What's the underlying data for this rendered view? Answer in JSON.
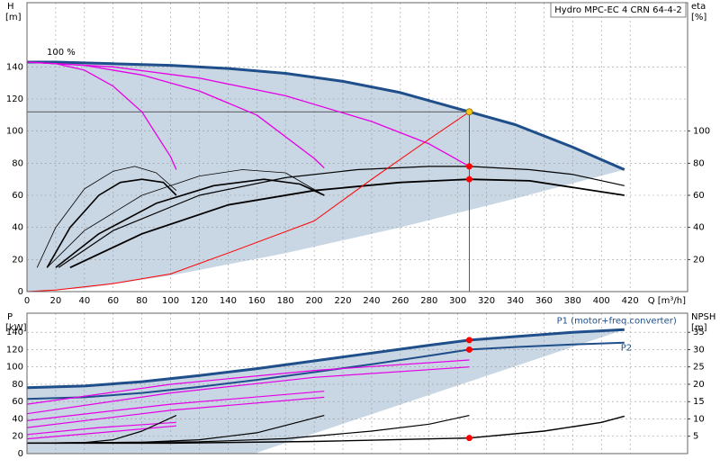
{
  "chart_data": [
    {
      "type": "line",
      "title": "Hydro MPC-EC 4 CRN 64-4-2",
      "annotation": "100 %",
      "xlabel": "Q [m³/h]",
      "ylabel": "H",
      "yunit": "[m]",
      "y2label": "eta",
      "y2unit": "[%]",
      "xlim": [
        0,
        460
      ],
      "xticks": [
        0,
        20,
        40,
        60,
        80,
        100,
        120,
        140,
        160,
        180,
        200,
        220,
        240,
        260,
        280,
        300,
        320,
        340,
        360,
        380,
        400,
        420
      ],
      "ylim": [
        0,
        180
      ],
      "yticks": [
        0,
        20,
        40,
        60,
        80,
        100,
        120,
        140
      ],
      "y2lim": [
        0,
        180
      ],
      "y2ticks": [
        20,
        40,
        60,
        80,
        100
      ],
      "grid": true,
      "xtick_labels": true,
      "range": {
        "color": "#c9d6e3",
        "x": [
          0,
          20,
          60,
          100,
          140,
          180,
          220,
          260,
          300,
          340,
          380,
          416,
          340,
          260,
          180,
          100,
          40,
          0
        ],
        "values": [
          143,
          143,
          142,
          141,
          139,
          136,
          131,
          124,
          114,
          104,
          90,
          76,
          58,
          40,
          24,
          10,
          2,
          0
        ]
      },
      "series": [
        {
          "color": "#1f4f8b",
          "width": 3,
          "axis": "y",
          "x": [
            0,
            20,
            60,
            100,
            140,
            180,
            220,
            260,
            300,
            340,
            380,
            416
          ],
          "values": [
            143,
            143,
            142,
            141,
            139,
            136,
            131,
            124,
            114,
            104,
            90,
            76
          ]
        },
        {
          "color": "#e600e6",
          "width": 1.3,
          "axis": "y",
          "x": [
            0,
            20,
            40,
            60,
            80,
            100,
            104
          ],
          "values": [
            143,
            142,
            138,
            128,
            112,
            84,
            76
          ]
        },
        {
          "color": "#e600e6",
          "width": 1.3,
          "axis": "y",
          "x": [
            0,
            40,
            80,
            120,
            160,
            200,
            207
          ],
          "values": [
            143,
            141,
            135,
            125,
            110,
            83,
            77
          ]
        },
        {
          "color": "#e600e6",
          "width": 1.3,
          "axis": "y",
          "x": [
            0,
            60,
            120,
            180,
            240,
            280,
            308
          ],
          "values": [
            143,
            140,
            133,
            122,
            106,
            92,
            78
          ]
        },
        {
          "color": "#000000",
          "width": 0.8,
          "axis": "y2",
          "x": [
            7,
            20,
            40,
            60,
            75,
            90,
            104
          ],
          "values": [
            15,
            40,
            64,
            75,
            78,
            74,
            63
          ]
        },
        {
          "color": "#000000",
          "width": 1.6,
          "axis": "y2",
          "x": [
            14,
            30,
            50,
            65,
            80,
            95,
            104
          ],
          "values": [
            15,
            40,
            60,
            68,
            70,
            68,
            60
          ]
        },
        {
          "color": "#000000",
          "width": 0.8,
          "axis": "y2",
          "x": [
            14,
            40,
            80,
            120,
            150,
            180,
            207
          ],
          "values": [
            15,
            38,
            60,
            72,
            76,
            74,
            60
          ]
        },
        {
          "color": "#000000",
          "width": 1.6,
          "axis": "y2",
          "x": [
            20,
            50,
            90,
            130,
            165,
            190,
            207
          ],
          "values": [
            15,
            36,
            55,
            66,
            70,
            67,
            60
          ]
        },
        {
          "color": "#000000",
          "width": 1.2,
          "axis": "y2",
          "x": [
            22,
            60,
            120,
            180,
            230,
            280,
            308,
            350,
            380,
            416
          ],
          "values": [
            15,
            38,
            60,
            71,
            76,
            78,
            78,
            76,
            73,
            66
          ]
        },
        {
          "color": "#000000",
          "width": 1.8,
          "axis": "y2",
          "x": [
            30,
            80,
            140,
            200,
            260,
            308,
            350,
            416
          ],
          "values": [
            15,
            36,
            54,
            63,
            68,
            70,
            69,
            60
          ]
        },
        {
          "color": "#ff0000",
          "width": 1,
          "axis": "y",
          "x": [
            0,
            20,
            60,
            100,
            140,
            200,
            240,
            280,
            308
          ],
          "values": [
            0,
            1,
            5,
            11,
            24,
            44,
            70,
            95,
            112
          ]
        }
      ],
      "duty_point": {
        "x": 308,
        "y": 112
      },
      "points": [
        {
          "x": 308,
          "value": 112,
          "color": "#f5c518",
          "axis": "y"
        },
        {
          "x": 308,
          "value": 78,
          "color": "#ff0000",
          "axis": "y"
        },
        {
          "x": 308,
          "value": 70,
          "color": "#ff0000",
          "axis": "y2"
        }
      ]
    },
    {
      "type": "line",
      "ylabel": "P",
      "yunit": "[kW]",
      "y2label": "NPSH",
      "y2unit": "[m]",
      "xlim": [
        0,
        460
      ],
      "xticks": [
        0,
        20,
        40,
        60,
        80,
        100,
        120,
        140,
        160,
        180,
        200,
        220,
        240,
        260,
        280,
        300,
        320,
        340,
        360,
        380,
        400,
        420
      ],
      "ylim": [
        0,
        162
      ],
      "yticks": [
        0,
        20,
        40,
        60,
        80,
        100,
        120,
        140
      ],
      "y2lim": [
        0,
        40.5
      ],
      "y2ticks": [
        5,
        10,
        15,
        20,
        25,
        30,
        35
      ],
      "grid": true,
      "xtick_labels": false,
      "range": {
        "color": "#c9d6e3",
        "x": [
          0,
          40,
          80,
          120,
          160,
          200,
          240,
          280,
          308,
          340,
          380,
          416,
          158,
          0
        ],
        "values": [
          76,
          78,
          83,
          90,
          98,
          107,
          116,
          125,
          131,
          135,
          140,
          143,
          0,
          0
        ]
      },
      "series": [
        {
          "name": "P1 (motor+freq.converter)",
          "color": "#1f4f8b",
          "width": 3,
          "axis": "y",
          "x": [
            0,
            40,
            80,
            120,
            160,
            200,
            240,
            280,
            308,
            340,
            380,
            416
          ],
          "values": [
            76,
            78,
            83,
            90,
            98,
            107,
            116,
            125,
            131,
            135,
            140,
            143
          ]
        },
        {
          "name": "P2",
          "color": "#1f4f8b",
          "width": 2,
          "axis": "y",
          "x": [
            0,
            40,
            80,
            120,
            160,
            200,
            240,
            280,
            308,
            340,
            380,
            416
          ],
          "values": [
            63,
            65,
            70,
            77,
            85,
            94,
            103,
            113,
            120,
            123,
            126,
            128
          ]
        },
        {
          "color": "#e600e6",
          "width": 1.2,
          "axis": "y",
          "x": [
            0,
            100,
            200,
            308
          ],
          "values": [
            57,
            80,
            96,
            108
          ]
        },
        {
          "color": "#e600e6",
          "width": 1.2,
          "axis": "y",
          "x": [
            0,
            100,
            200,
            308
          ],
          "values": [
            46,
            70,
            88,
            100
          ]
        },
        {
          "color": "#e600e6",
          "width": 1.2,
          "axis": "y",
          "x": [
            0,
            100,
            207
          ],
          "values": [
            38,
            57,
            72
          ]
        },
        {
          "color": "#e600e6",
          "width": 1.2,
          "axis": "y",
          "x": [
            0,
            100,
            207
          ],
          "values": [
            30,
            50,
            65
          ]
        },
        {
          "color": "#e600e6",
          "width": 1.2,
          "axis": "y",
          "x": [
            0,
            50,
            104
          ],
          "values": [
            22,
            30,
            36
          ]
        },
        {
          "color": "#e600e6",
          "width": 1.2,
          "axis": "y",
          "x": [
            0,
            50,
            104
          ],
          "values": [
            17,
            24,
            32
          ]
        },
        {
          "color": "#000000",
          "width": 1.2,
          "axis": "y2",
          "x": [
            0,
            40,
            60,
            80,
            104
          ],
          "values": [
            3,
            3.2,
            4,
            6.5,
            11
          ]
        },
        {
          "color": "#000000",
          "width": 1.2,
          "axis": "y2",
          "x": [
            0,
            80,
            120,
            160,
            207
          ],
          "values": [
            3,
            3.3,
            4,
            6,
            11
          ]
        },
        {
          "color": "#000000",
          "width": 1.2,
          "axis": "y2",
          "x": [
            0,
            120,
            180,
            240,
            280,
            308
          ],
          "values": [
            3,
            3.4,
            4.3,
            6.5,
            8.5,
            11
          ]
        },
        {
          "color": "#000000",
          "width": 1.4,
          "axis": "y2",
          "x": [
            0,
            100,
            200,
            308,
            360,
            400,
            416
          ],
          "values": [
            3,
            3,
            3.5,
            4.5,
            6.5,
            9,
            10.8
          ]
        }
      ],
      "points": [
        {
          "x": 308,
          "value": 131,
          "color": "#ff0000",
          "axis": "y"
        },
        {
          "x": 308,
          "value": 120,
          "color": "#ff0000",
          "axis": "y"
        },
        {
          "x": 308,
          "value": 4.5,
          "color": "#ff0000",
          "axis": "y2"
        }
      ]
    }
  ]
}
